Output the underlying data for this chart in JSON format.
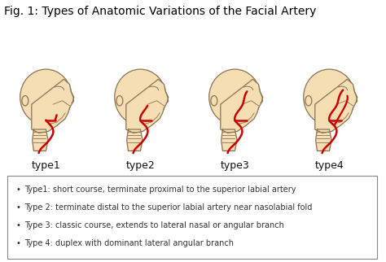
{
  "title": "Fig. 1: Types of Anatomic Variations of the Facial Artery",
  "title_fontsize": 10,
  "background_color": "#ffffff",
  "head_fill_color": "#F5DEB3",
  "head_edge_color": "#8B7355",
  "artery_color": "#CC0000",
  "type_labels": [
    "type1",
    "type2",
    "type3",
    "type4"
  ],
  "legend_items": [
    "Type1: short course, terminate proximal to the superior labial artery",
    "Type 2: terminate distal to the superior labial artery near nasolabial fold",
    "Type 3: classic course, extends to lateral nasal or angular branch",
    "Type 4: duplex with dominant lateral angular branch"
  ],
  "legend_fontsize": 7.0,
  "type_label_fontsize": 9,
  "fig_width": 4.74,
  "fig_height": 3.22,
  "dpi": 100
}
